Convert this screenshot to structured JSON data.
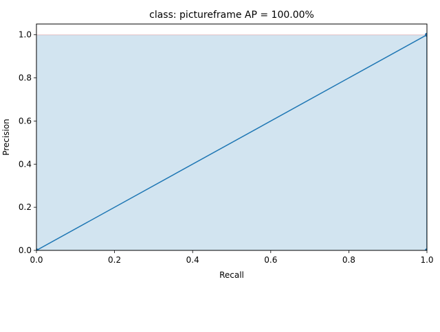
{
  "chart_data": {
    "type": "area",
    "title": "class: pictureframe AP = 100.00%",
    "xlabel": "Recall",
    "ylabel": "Precision",
    "xlim": [
      0.0,
      1.0
    ],
    "ylim": [
      0.0,
      1.05
    ],
    "xticks": [
      "0.0",
      "0.2",
      "0.4",
      "0.6",
      "0.8",
      "1.0"
    ],
    "yticks": [
      "0.0",
      "0.2",
      "0.4",
      "0.6",
      "0.8",
      "1.0"
    ],
    "grid": false,
    "series": [
      {
        "kind": "line",
        "x": [
          0.0,
          1.0,
          1.0
        ],
        "y": [
          0.0,
          1.0,
          0.0
        ],
        "markers": true,
        "color": "#1f77b4"
      },
      {
        "kind": "area",
        "x": [
          0.0,
          1.0,
          1.0
        ],
        "y": [
          1.0,
          1.0,
          0.0
        ],
        "color": "#1f77b4",
        "opacity": 0.2
      },
      {
        "kind": "line",
        "x": [
          0.0,
          1.0
        ],
        "y": [
          1.0,
          1.0
        ],
        "color": "#d62728",
        "opacity": 0.2
      }
    ]
  }
}
